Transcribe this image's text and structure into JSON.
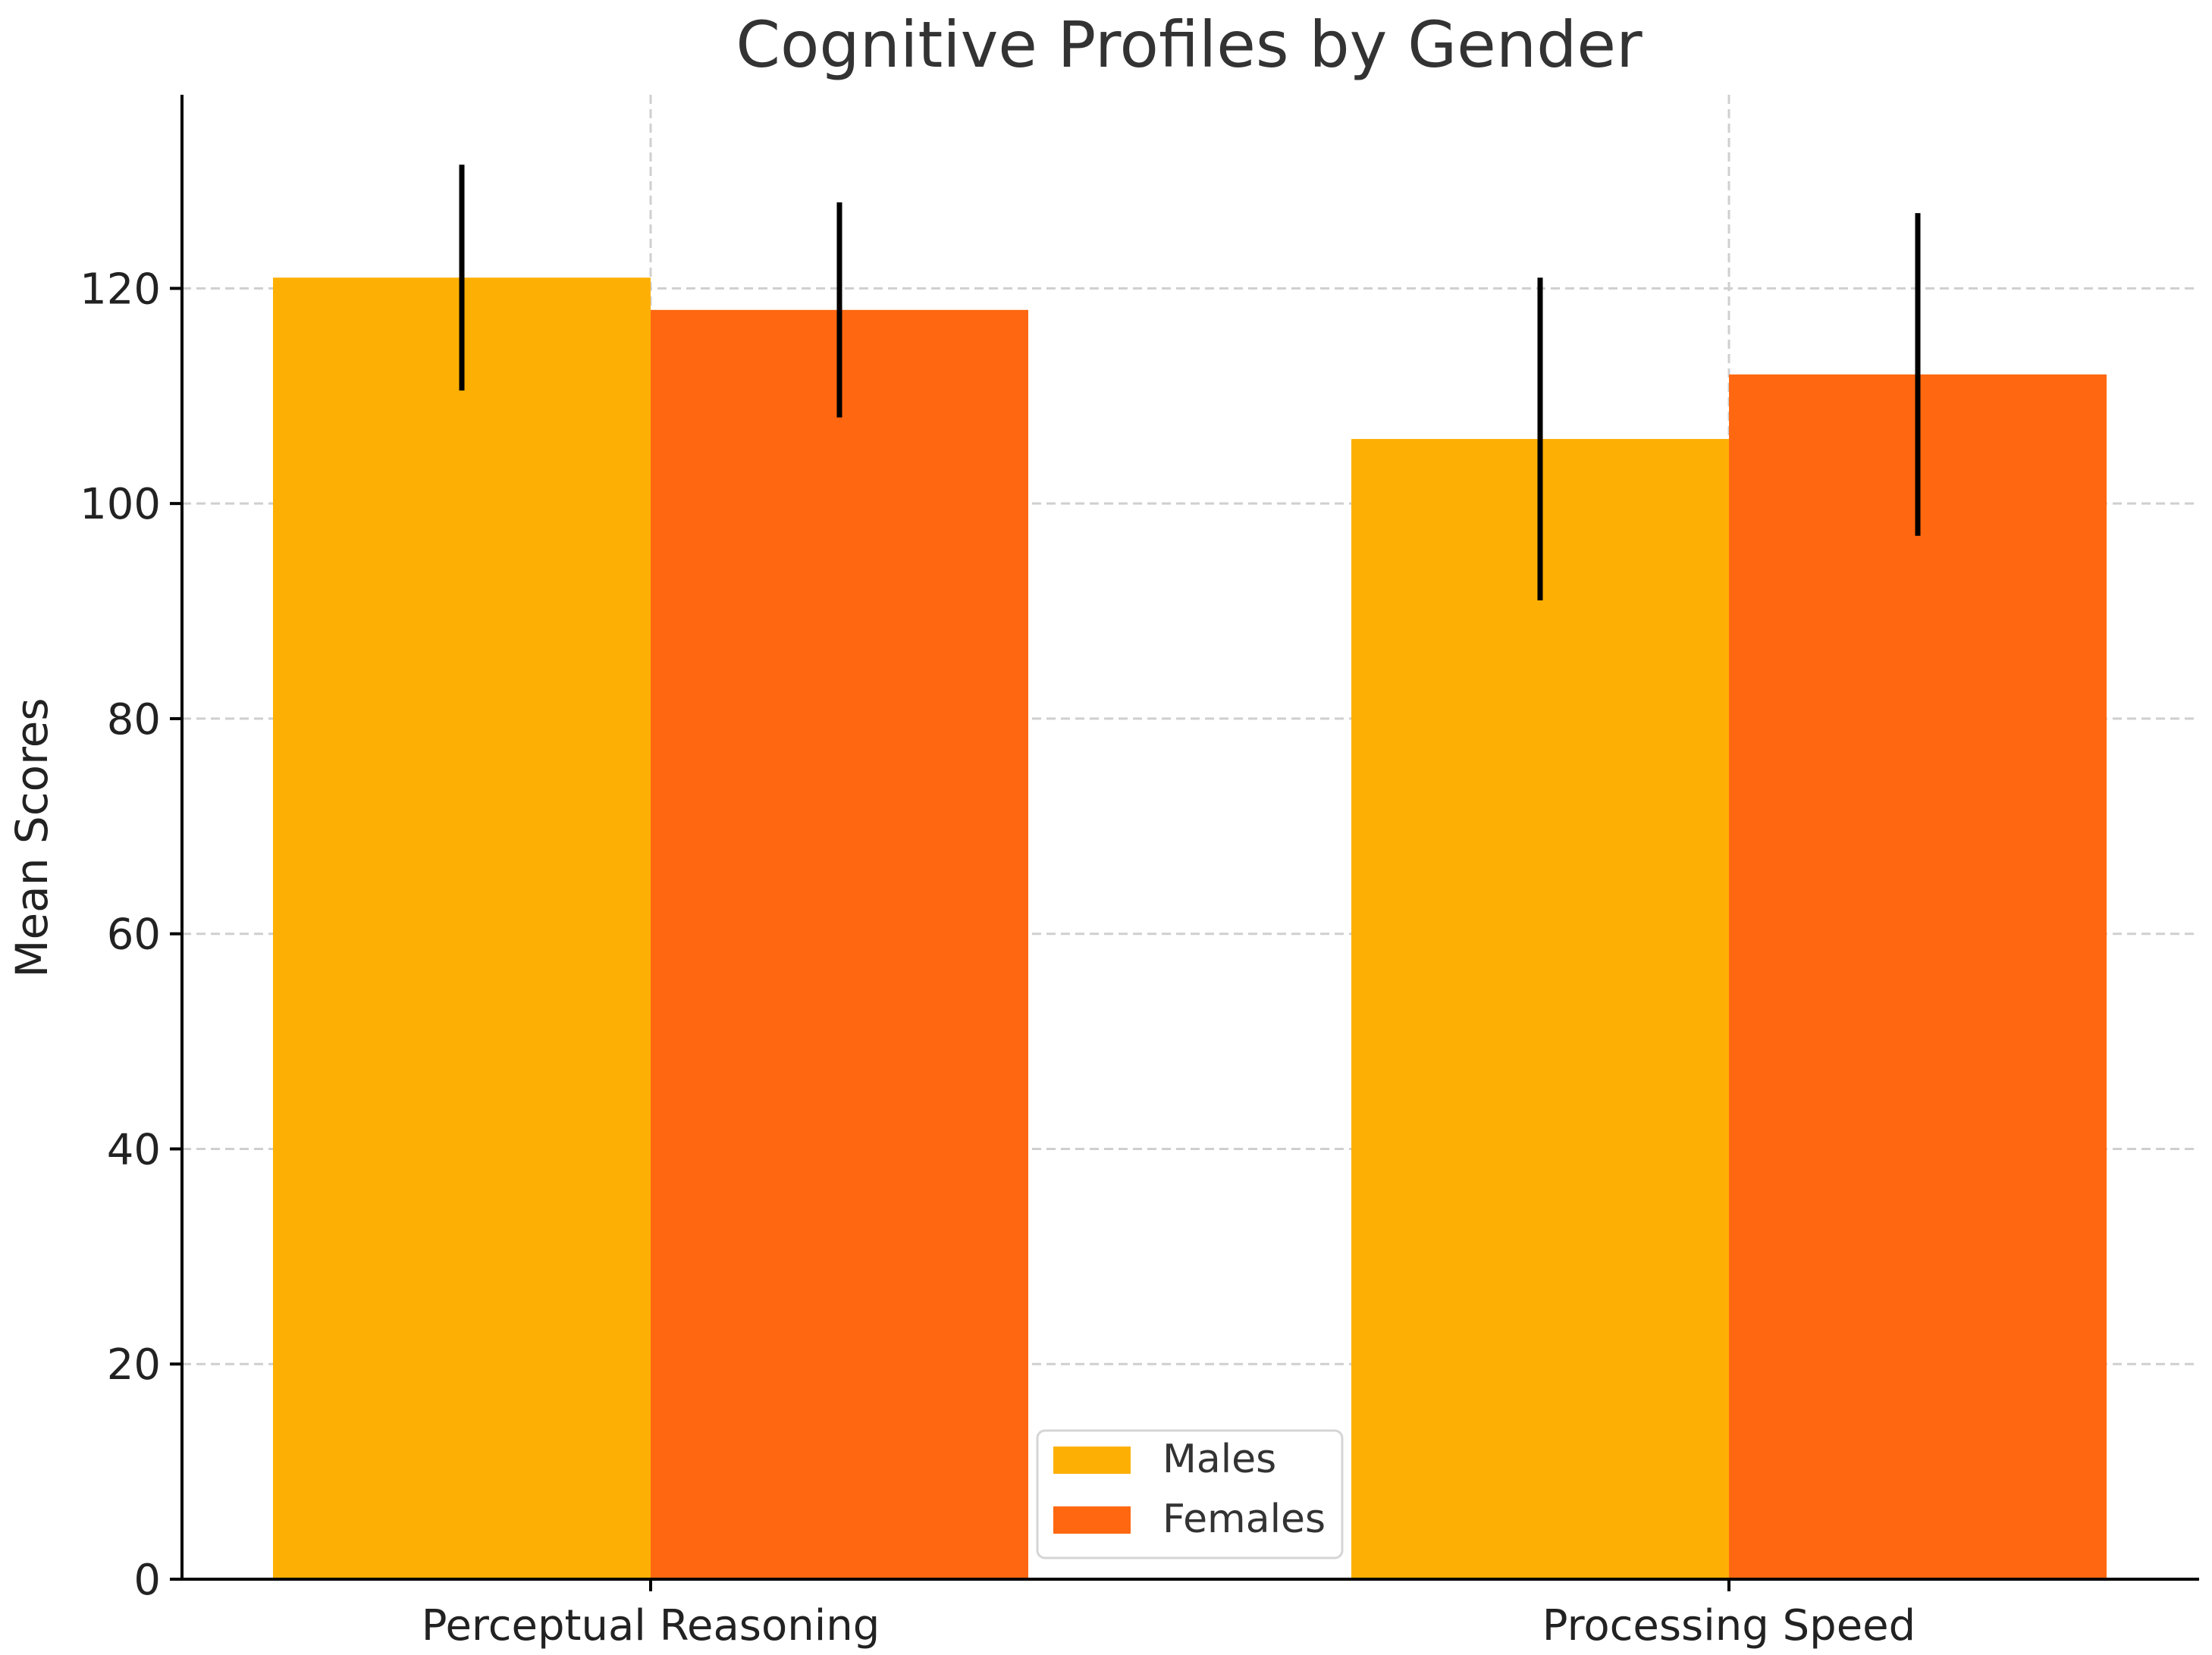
{
  "chart_data": {
    "type": "bar",
    "title": "Cognitive Profiles by Gender",
    "xlabel": "",
    "ylabel": "Mean Scores",
    "categories": [
      "Perceptual Reasoning",
      "Processing Speed"
    ],
    "series": [
      {
        "name": "Males",
        "color": "#FDB003",
        "values": [
          121,
          106
        ],
        "errors": [
          10.5,
          15
        ]
      },
      {
        "name": "Females",
        "color": "#FF6810",
        "values": [
          118,
          112
        ],
        "errors": [
          10,
          15
        ]
      }
    ],
    "ylim": [
      0,
      138
    ],
    "yticks": [
      0,
      20,
      40,
      60,
      80,
      100,
      120
    ],
    "grid": true,
    "legend_position": "lower-center"
  }
}
